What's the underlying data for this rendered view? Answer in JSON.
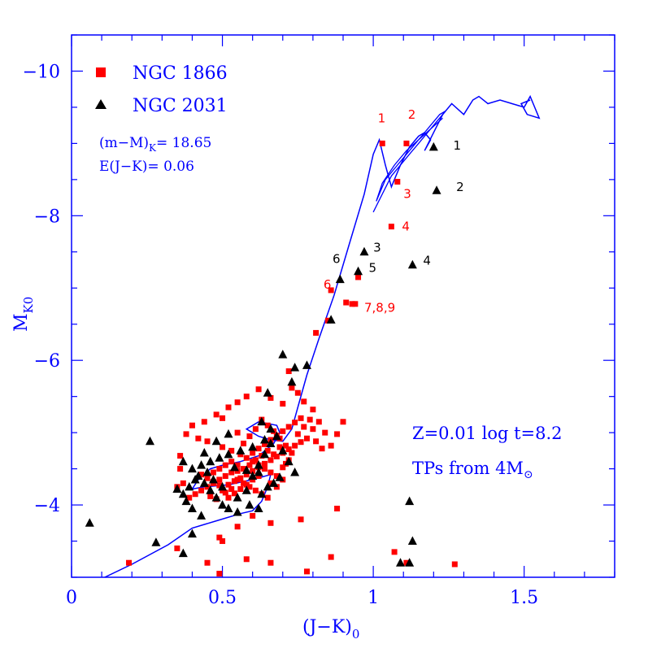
{
  "chart_data": {
    "type": "scatter",
    "xlabel": "(J−K)",
    "xlabel_sub": "0",
    "ylabel": "M",
    "ylabel_sub": "K0",
    "xlim": [
      0,
      1.8
    ],
    "ylim": [
      -3,
      -10.5
    ],
    "x_ticks": [
      "0",
      "0.5",
      "1",
      "1.5"
    ],
    "x_tick_values": [
      0,
      0.5,
      1,
      1.5
    ],
    "y_ticks": [
      "−10",
      "−8",
      "−6",
      "−4"
    ],
    "y_tick_values": [
      -10,
      -8,
      -6,
      -4
    ],
    "colors": {
      "axis": "#0000ff",
      "ngc1866": "#ff0000",
      "ngc2031": "#000000",
      "isochrone": "#0000ff"
    },
    "legend": [
      {
        "symbol": "square",
        "label": "NGC 1866"
      },
      {
        "symbol": "triangle",
        "label": "NGC 2031"
      }
    ],
    "annotations": {
      "distance_modulus": "(m−M)",
      "distance_modulus_sub": "K",
      "distance_modulus_value": "= 18.65",
      "reddening": "E(J−K)= 0.06",
      "model": "Z=0.01 log t=8.2",
      "tps_prefix": "TPs from 4M",
      "tps_sub": "⊙"
    },
    "series": [
      {
        "name": "NGC 1866",
        "marker": "square",
        "points": [
          [
            1.03,
            -9.0
          ],
          [
            1.11,
            -9.0
          ],
          [
            1.08,
            -8.47
          ],
          [
            1.06,
            -7.85
          ],
          [
            0.95,
            -7.15
          ],
          [
            0.86,
            -6.97
          ],
          [
            0.91,
            -6.8
          ],
          [
            0.93,
            -6.78
          ],
          [
            0.94,
            -6.78
          ],
          [
            0.85,
            -6.55
          ],
          [
            0.81,
            -6.38
          ],
          [
            0.72,
            -5.85
          ],
          [
            0.73,
            -5.62
          ],
          [
            0.75,
            -5.55
          ],
          [
            0.77,
            -5.43
          ],
          [
            0.8,
            -5.32
          ],
          [
            0.7,
            -5.4
          ],
          [
            0.66,
            -5.48
          ],
          [
            0.62,
            -5.6
          ],
          [
            0.58,
            -5.5
          ],
          [
            0.55,
            -5.42
          ],
          [
            0.52,
            -5.35
          ],
          [
            0.48,
            -5.25
          ],
          [
            0.44,
            -5.15
          ],
          [
            0.4,
            -5.1
          ],
          [
            0.38,
            -4.98
          ],
          [
            0.42,
            -4.92
          ],
          [
            0.45,
            -4.88
          ],
          [
            0.5,
            -4.8
          ],
          [
            0.53,
            -4.75
          ],
          [
            0.56,
            -4.7
          ],
          [
            0.58,
            -4.65
          ],
          [
            0.6,
            -4.6
          ],
          [
            0.62,
            -4.55
          ],
          [
            0.64,
            -4.5
          ],
          [
            0.66,
            -4.45
          ],
          [
            0.68,
            -4.4
          ],
          [
            0.7,
            -4.52
          ],
          [
            0.72,
            -4.62
          ],
          [
            0.73,
            -4.72
          ],
          [
            0.71,
            -4.82
          ],
          [
            0.69,
            -4.92
          ],
          [
            0.67,
            -5.02
          ],
          [
            0.65,
            -5.1
          ],
          [
            0.63,
            -5.18
          ],
          [
            0.61,
            -5.05
          ],
          [
            0.59,
            -4.95
          ],
          [
            0.57,
            -4.85
          ],
          [
            0.55,
            -4.55
          ],
          [
            0.53,
            -4.45
          ],
          [
            0.51,
            -4.4
          ],
          [
            0.49,
            -4.35
          ],
          [
            0.47,
            -4.3
          ],
          [
            0.45,
            -4.25
          ],
          [
            0.43,
            -4.2
          ],
          [
            0.41,
            -4.15
          ],
          [
            0.39,
            -4.1
          ],
          [
            0.37,
            -4.3
          ],
          [
            0.36,
            -4.5
          ],
          [
            0.35,
            -4.25
          ],
          [
            0.46,
            -4.12
          ],
          [
            0.48,
            -4.08
          ],
          [
            0.5,
            -4.2
          ],
          [
            0.52,
            -4.28
          ],
          [
            0.54,
            -4.33
          ],
          [
            0.56,
            -4.37
          ],
          [
            0.58,
            -4.42
          ],
          [
            0.6,
            -4.47
          ],
          [
            0.62,
            -4.52
          ],
          [
            0.64,
            -4.57
          ],
          [
            0.66,
            -4.62
          ],
          [
            0.68,
            -4.67
          ],
          [
            0.7,
            -4.72
          ],
          [
            0.72,
            -4.77
          ],
          [
            0.74,
            -4.82
          ],
          [
            0.76,
            -4.87
          ],
          [
            0.78,
            -4.92
          ],
          [
            0.8,
            -5.05
          ],
          [
            0.82,
            -5.15
          ],
          [
            0.84,
            -5.0
          ],
          [
            0.86,
            -4.82
          ],
          [
            0.88,
            -4.98
          ],
          [
            0.9,
            -5.15
          ],
          [
            0.57,
            -4.3
          ],
          [
            0.59,
            -4.25
          ],
          [
            0.61,
            -4.2
          ],
          [
            0.63,
            -4.15
          ],
          [
            0.65,
            -4.1
          ],
          [
            0.55,
            -4.35
          ],
          [
            0.53,
            -4.22
          ],
          [
            0.51,
            -4.17
          ],
          [
            0.49,
            -4.27
          ],
          [
            0.47,
            -4.32
          ],
          [
            0.45,
            -4.37
          ],
          [
            0.43,
            -4.42
          ],
          [
            0.6,
            -4.72
          ],
          [
            0.62,
            -4.78
          ],
          [
            0.64,
            -4.84
          ],
          [
            0.66,
            -4.9
          ],
          [
            0.68,
            -4.96
          ],
          [
            0.7,
            -5.02
          ],
          [
            0.72,
            -5.08
          ],
          [
            0.74,
            -5.14
          ],
          [
            0.76,
            -5.2
          ],
          [
            0.66,
            -4.3
          ],
          [
            0.68,
            -4.25
          ],
          [
            0.7,
            -4.35
          ],
          [
            0.62,
            -4.4
          ],
          [
            0.6,
            -4.35
          ],
          [
            0.58,
            -4.28
          ],
          [
            0.56,
            -4.22
          ],
          [
            0.54,
            -4.16
          ],
          [
            0.52,
            -4.1
          ],
          [
            0.67,
            -4.7
          ],
          [
            0.69,
            -4.8
          ],
          [
            0.65,
            -4.75
          ],
          [
            0.63,
            -4.68
          ],
          [
            0.61,
            -4.62
          ],
          [
            0.59,
            -4.55
          ],
          [
            0.57,
            -4.5
          ],
          [
            0.55,
            -4.47
          ],
          [
            0.53,
            -4.6
          ],
          [
            0.51,
            -4.55
          ],
          [
            0.49,
            -4.5
          ],
          [
            0.47,
            -4.45
          ],
          [
            0.75,
            -4.98
          ],
          [
            0.77,
            -5.08
          ],
          [
            0.79,
            -5.18
          ],
          [
            0.81,
            -4.88
          ],
          [
            0.83,
            -4.78
          ],
          [
            0.71,
            -4.57
          ],
          [
            0.88,
            -3.95
          ],
          [
            0.76,
            -3.8
          ],
          [
            0.66,
            -3.75
          ],
          [
            0.6,
            -3.85
          ],
          [
            0.55,
            -3.7
          ],
          [
            0.49,
            -3.55
          ],
          [
            0.5,
            -3.5
          ],
          [
            0.35,
            -3.4
          ],
          [
            0.86,
            -3.28
          ],
          [
            1.07,
            -3.35
          ],
          [
            0.58,
            -3.25
          ],
          [
            0.66,
            -3.2
          ],
          [
            0.45,
            -3.2
          ],
          [
            0.19,
            -3.2
          ],
          [
            0.78,
            -3.08
          ],
          [
            1.27,
            -3.18
          ],
          [
            1.11,
            -3.2
          ],
          [
            0.49,
            -3.05
          ],
          [
            0.36,
            -4.68
          ],
          [
            0.55,
            -5.0
          ],
          [
            0.5,
            -5.2
          ]
        ]
      },
      {
        "name": "NGC 2031",
        "marker": "triangle",
        "points": [
          [
            1.2,
            -8.95
          ],
          [
            1.21,
            -8.35
          ],
          [
            0.97,
            -7.5
          ],
          [
            1.13,
            -7.32
          ],
          [
            0.95,
            -7.23
          ],
          [
            0.89,
            -7.12
          ],
          [
            0.86,
            -6.56
          ],
          [
            0.7,
            -6.08
          ],
          [
            0.78,
            -5.93
          ],
          [
            0.74,
            -5.9
          ],
          [
            0.73,
            -5.7
          ],
          [
            0.65,
            -5.55
          ],
          [
            0.63,
            -5.15
          ],
          [
            0.52,
            -4.98
          ],
          [
            0.48,
            -4.88
          ],
          [
            0.26,
            -4.88
          ],
          [
            0.37,
            -4.6
          ],
          [
            0.4,
            -4.5
          ],
          [
            0.42,
            -4.4
          ],
          [
            0.44,
            -4.3
          ],
          [
            0.46,
            -4.2
          ],
          [
            0.48,
            -4.1
          ],
          [
            0.5,
            -4.0
          ],
          [
            0.52,
            -3.95
          ],
          [
            0.55,
            -4.1
          ],
          [
            0.58,
            -4.2
          ],
          [
            0.6,
            -4.4
          ],
          [
            0.62,
            -4.55
          ],
          [
            0.64,
            -4.7
          ],
          [
            0.66,
            -4.85
          ],
          [
            0.68,
            -4.95
          ],
          [
            0.7,
            -4.75
          ],
          [
            0.72,
            -4.6
          ],
          [
            0.74,
            -4.45
          ],
          [
            0.67,
            -4.3
          ],
          [
            0.63,
            -4.15
          ],
          [
            0.59,
            -4.0
          ],
          [
            0.55,
            -3.9
          ],
          [
            0.5,
            -4.25
          ],
          [
            0.47,
            -4.35
          ],
          [
            0.45,
            -4.45
          ],
          [
            0.43,
            -4.55
          ],
          [
            0.41,
            -4.35
          ],
          [
            0.39,
            -4.25
          ],
          [
            0.37,
            -4.15
          ],
          [
            0.35,
            -4.22
          ],
          [
            0.38,
            -4.05
          ],
          [
            0.4,
            -3.95
          ],
          [
            0.43,
            -3.85
          ],
          [
            0.46,
            -4.6
          ],
          [
            0.49,
            -4.65
          ],
          [
            0.52,
            -4.7
          ],
          [
            0.56,
            -4.75
          ],
          [
            0.6,
            -4.8
          ],
          [
            0.64,
            -4.9
          ],
          [
            0.66,
            -5.05
          ],
          [
            0.62,
            -4.45
          ],
          [
            0.58,
            -4.48
          ],
          [
            0.54,
            -4.52
          ],
          [
            0.62,
            -3.95
          ],
          [
            0.65,
            -4.25
          ],
          [
            0.69,
            -4.38
          ],
          [
            0.44,
            -4.72
          ],
          [
            0.06,
            -3.75
          ],
          [
            0.28,
            -3.48
          ],
          [
            0.37,
            -3.33
          ],
          [
            1.12,
            -4.05
          ],
          [
            1.13,
            -3.5
          ],
          [
            1.09,
            -3.2
          ],
          [
            1.12,
            -3.2
          ],
          [
            0.4,
            -3.6
          ]
        ]
      }
    ],
    "labels_ngc1866": [
      {
        "text": "1",
        "x": 1.015,
        "y": -9.35
      },
      {
        "text": "2",
        "x": 1.115,
        "y": -9.4
      },
      {
        "text": "3",
        "x": 1.1,
        "y": -8.3
      },
      {
        "text": "4",
        "x": 1.095,
        "y": -7.85
      },
      {
        "text": "6",
        "x": 0.835,
        "y": -7.05
      },
      {
        "text": "7,8,9",
        "x": 0.97,
        "y": -6.73
      }
    ],
    "labels_ngc2031": [
      {
        "text": "1",
        "x": 1.265,
        "y": -8.97
      },
      {
        "text": "2",
        "x": 1.275,
        "y": -8.4
      },
      {
        "text": "3",
        "x": 1.0,
        "y": -7.56
      },
      {
        "text": "4",
        "x": 1.165,
        "y": -7.38
      },
      {
        "text": "5",
        "x": 0.985,
        "y": -7.28
      },
      {
        "text": "6",
        "x": 0.865,
        "y": -7.4
      }
    ],
    "isochrone": [
      [
        0.11,
        -3.0
      ],
      [
        0.2,
        -3.18
      ],
      [
        0.32,
        -3.45
      ],
      [
        0.4,
        -3.68
      ],
      [
        0.48,
        -3.78
      ],
      [
        0.56,
        -3.88
      ],
      [
        0.6,
        -3.92
      ],
      [
        0.63,
        -4.05
      ],
      [
        0.65,
        -4.25
      ],
      [
        0.66,
        -4.42
      ],
      [
        0.6,
        -4.35
      ],
      [
        0.52,
        -4.28
      ],
      [
        0.44,
        -4.25
      ],
      [
        0.4,
        -4.22
      ],
      [
        0.42,
        -4.35
      ],
      [
        0.46,
        -4.5
      ],
      [
        0.5,
        -4.55
      ],
      [
        0.56,
        -4.6
      ],
      [
        0.62,
        -4.68
      ],
      [
        0.67,
        -4.85
      ],
      [
        0.69,
        -5.0
      ],
      [
        0.68,
        -5.1
      ],
      [
        0.62,
        -5.15
      ],
      [
        0.58,
        -5.05
      ],
      [
        0.62,
        -4.95
      ],
      [
        0.66,
        -4.9
      ],
      [
        0.7,
        -4.88
      ],
      [
        0.73,
        -5.05
      ],
      [
        0.75,
        -5.35
      ],
      [
        0.78,
        -5.8
      ],
      [
        0.82,
        -6.3
      ],
      [
        0.87,
        -6.9
      ],
      [
        0.92,
        -7.6
      ],
      [
        0.97,
        -8.3
      ],
      [
        1.0,
        -8.85
      ],
      [
        1.02,
        -9.05
      ],
      [
        1.04,
        -8.7
      ],
      [
        1.06,
        -8.4
      ],
      [
        1.09,
        -8.7
      ],
      [
        1.12,
        -8.95
      ],
      [
        1.15,
        -9.1
      ],
      [
        1.17,
        -9.15
      ],
      [
        1.19,
        -9.05
      ],
      [
        1.17,
        -8.9
      ],
      [
        1.2,
        -9.15
      ],
      [
        1.23,
        -9.4
      ],
      [
        1.26,
        -9.55
      ],
      [
        1.3,
        -9.4
      ],
      [
        1.33,
        -9.6
      ],
      [
        1.35,
        -9.65
      ],
      [
        1.38,
        -9.55
      ],
      [
        1.42,
        -9.6
      ],
      [
        1.46,
        -9.55
      ],
      [
        1.5,
        -9.5
      ],
      [
        1.52,
        -9.65
      ],
      [
        1.53,
        -9.55
      ],
      [
        1.55,
        -9.35
      ],
      [
        1.51,
        -9.4
      ],
      [
        1.49,
        -9.55
      ],
      [
        1.52,
        -9.6
      ]
    ],
    "isochrone_loop": [
      [
        1.0,
        -8.05
      ],
      [
        1.03,
        -8.3
      ],
      [
        1.06,
        -8.55
      ],
      [
        1.09,
        -8.7
      ],
      [
        1.12,
        -8.85
      ],
      [
        1.15,
        -9.0
      ],
      [
        1.18,
        -9.15
      ],
      [
        1.21,
        -9.3
      ],
      [
        1.24,
        -9.45
      ],
      [
        1.22,
        -9.4
      ],
      [
        1.19,
        -9.25
      ],
      [
        1.16,
        -9.1
      ],
      [
        1.13,
        -8.95
      ],
      [
        1.1,
        -8.8
      ],
      [
        1.07,
        -8.65
      ],
      [
        1.04,
        -8.5
      ],
      [
        1.01,
        -8.2
      ],
      [
        1.03,
        -8.45
      ],
      [
        1.07,
        -8.7
      ],
      [
        1.11,
        -8.9
      ],
      [
        1.15,
        -9.05
      ],
      [
        1.19,
        -9.2
      ],
      [
        1.23,
        -9.35
      ]
    ]
  }
}
